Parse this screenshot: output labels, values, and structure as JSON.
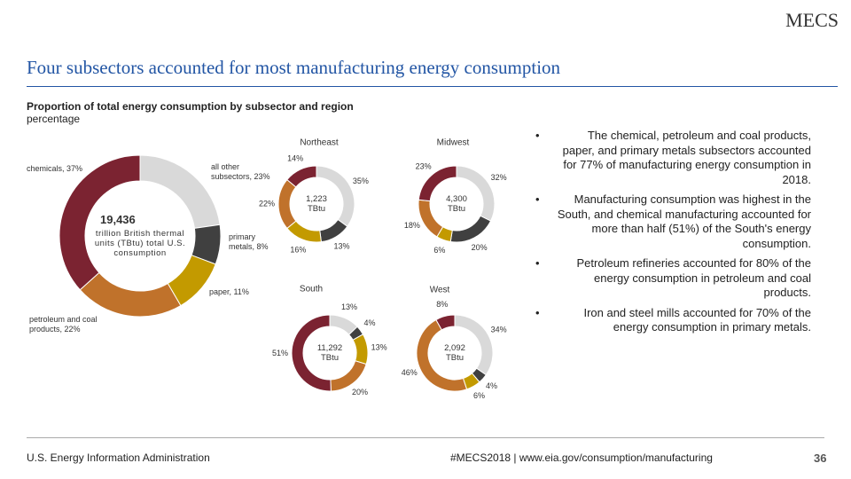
{
  "logo": "MECS",
  "title": "Four subsectors accounted for most manufacturing energy consumption",
  "subtitle": "Proportion of total energy consumption by subsector and region",
  "unit_note": "percentage",
  "chart_data": [
    {
      "type": "pie",
      "donut": true,
      "center_title": "19,436",
      "center_subtitle": "trillion British thermal units (TBtu) total U.S. consumption",
      "values": [
        23,
        8,
        11,
        22,
        37
      ],
      "value_labels": [
        "all other subsectors, 23%",
        "primary metals, 8%",
        "paper, 11%",
        "petroleum and coal products, 22%",
        "chemicals, 37%"
      ],
      "colors": [
        "#d9d9d9",
        "#404040",
        "#c39a00",
        "#c0722b",
        "#7b2331"
      ]
    },
    {
      "type": "pie",
      "donut": true,
      "title": "Northeast",
      "center_title": "1,223 TBtu",
      "values": [
        35,
        13,
        16,
        22,
        14
      ],
      "value_labels": [
        "35%",
        "13%",
        "16%",
        "22%",
        "14%"
      ],
      "colors": [
        "#d9d9d9",
        "#404040",
        "#c39a00",
        "#c0722b",
        "#7b2331"
      ]
    },
    {
      "type": "pie",
      "donut": true,
      "title": "Midwest",
      "center_title": "4,300 TBtu",
      "values": [
        32,
        20,
        6,
        18,
        23
      ],
      "value_labels": [
        "32%",
        "20%",
        "6%",
        "18%",
        "23%"
      ],
      "colors": [
        "#d9d9d9",
        "#404040",
        "#c39a00",
        "#c0722b",
        "#7b2331"
      ]
    },
    {
      "type": "pie",
      "donut": true,
      "title": "South",
      "center_title": "11,292 TBtu",
      "values": [
        13,
        4,
        13,
        20,
        51
      ],
      "value_labels": [
        "13%",
        "4%",
        "13%",
        "20%",
        "51%"
      ],
      "colors": [
        "#d9d9d9",
        "#404040",
        "#c39a00",
        "#c0722b",
        "#7b2331"
      ]
    },
    {
      "type": "pie",
      "donut": true,
      "title": "West",
      "center_title": "2,092 TBtu",
      "values": [
        34,
        4,
        6,
        46,
        8
      ],
      "value_labels": [
        "34%",
        "4%",
        "6%",
        "46%",
        "8%"
      ],
      "colors": [
        "#d9d9d9",
        "#404040",
        "#c39a00",
        "#c0722b",
        "#7b2331"
      ]
    }
  ],
  "bullets": [
    "The chemical, petroleum and coal products, paper, and primary metals subsectors accounted for 77% of manufacturing energy consumption in 2018.",
    "Manufacturing consumption was highest in the South, and chemical manufacturing accounted for more than half (51%) of the South's energy consumption.",
    "Petroleum refineries accounted for 80% of the energy consumption in petroleum and coal products.",
    "Iron and steel mills accounted for 70% of the energy consumption in primary metals."
  ],
  "footer": {
    "source": "U.S. Energy Information Administration",
    "link": "#MECS2018 | www.eia.gov/consumption/manufacturing",
    "page": 36
  }
}
